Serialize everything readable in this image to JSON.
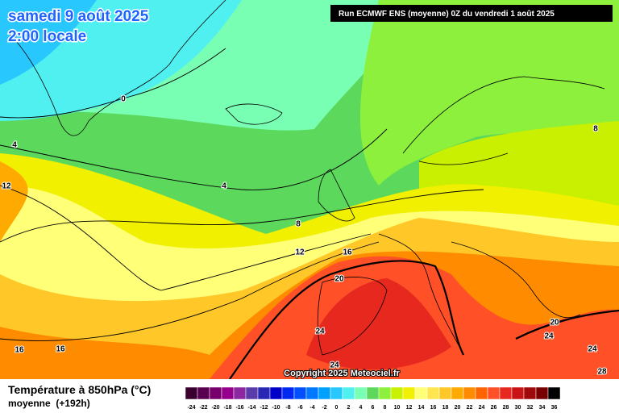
{
  "header": {
    "date": "samedi 9 août 2025",
    "time": "2:00 locale",
    "run": "Run ECMWF ENS (moyenne) 0Z du vendredi 1 août 2025"
  },
  "map": {
    "contour_labels": [
      0,
      4,
      4,
      12,
      8,
      12,
      16,
      20,
      24,
      16,
      16,
      24,
      20,
      24,
      24,
      28,
      8
    ]
  },
  "copyright": "Copyright 2025 Meteociel.fr",
  "legend": {
    "title": "Température à 850hPa (°C)",
    "subtitle": "moyenne  (+192h)",
    "scale": [
      -24,
      -22,
      -20,
      -18,
      -16,
      -14,
      -12,
      -10,
      -8,
      -6,
      -4,
      -2,
      0,
      2,
      4,
      6,
      8,
      10,
      12,
      14,
      16,
      18,
      20,
      22,
      24,
      26,
      28,
      30,
      32,
      34,
      36
    ],
    "colors": [
      "#3c0030",
      "#5a0050",
      "#78006e",
      "#96008c",
      "#8c28a0",
      "#5a3caa",
      "#2828b4",
      "#0000c8",
      "#0028f0",
      "#0050ff",
      "#0078ff",
      "#00a0ff",
      "#28c8ff",
      "#50f0f0",
      "#78ffb4",
      "#5cd85c",
      "#8cf03c",
      "#c8f000",
      "#f0f000",
      "#ffff78",
      "#ffe650",
      "#ffc828",
      "#ffaa00",
      "#ff8c00",
      "#ff6400",
      "#ff5028",
      "#e6281e",
      "#c81414",
      "#a00a0a",
      "#780000",
      "#000000"
    ]
  }
}
